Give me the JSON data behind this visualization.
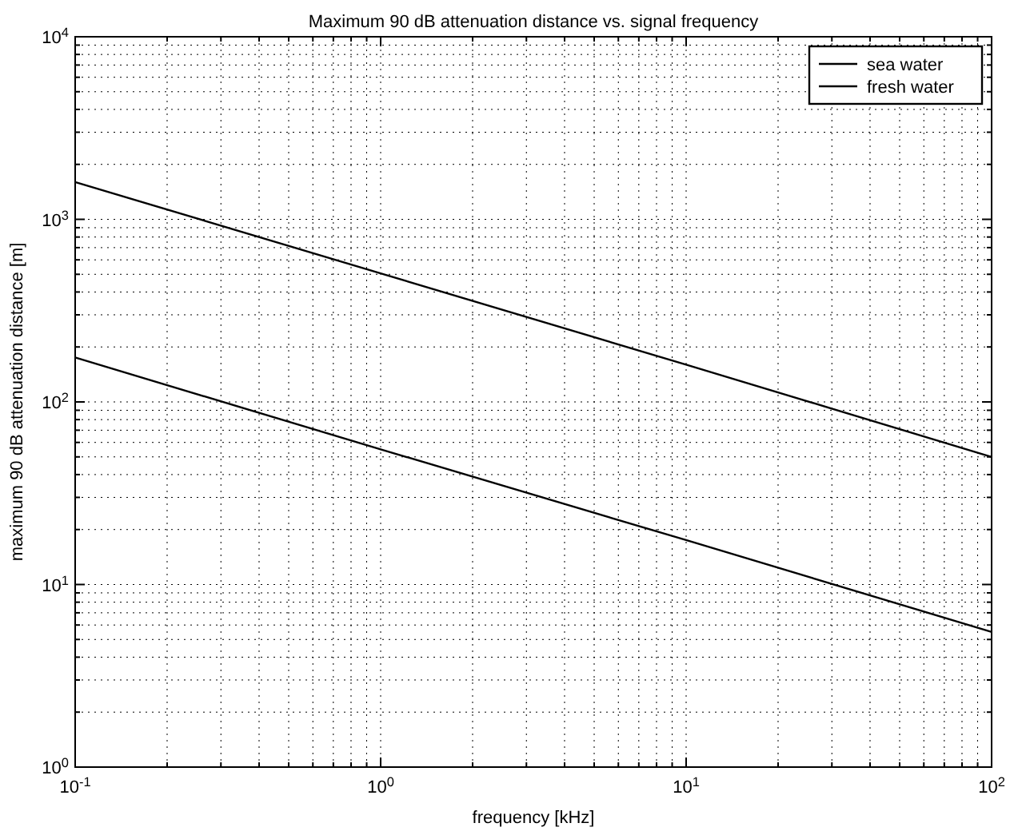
{
  "chart_data": {
    "type": "line",
    "title": "Maximum 90 dB attenuation distance vs. signal frequency",
    "xlabel": "frequency [kHz]",
    "ylabel": "maximum 90 dB attenuation distance [m]",
    "log": "xy",
    "grid": true,
    "legend": "top right",
    "marker": "none",
    "line_style": "solid",
    "xlim": [
      0.1,
      100
    ],
    "ylim": [
      1,
      10000
    ],
    "xticks": [
      {
        "value": 0.1,
        "label": "10$^{-1}$"
      },
      {
        "value": 0.2,
        "label": null
      },
      {
        "value": 0.3,
        "label": null
      },
      {
        "value": 0.4,
        "label": null
      },
      {
        "value": 0.5,
        "label": null
      },
      {
        "value": 0.6,
        "label": null
      },
      {
        "value": 0.7,
        "label": null
      },
      {
        "value": 0.8,
        "label": null
      },
      {
        "value": 0.9,
        "label": null
      },
      {
        "value": 1,
        "label": "10$^{0}$"
      },
      {
        "value": 2,
        "label": null
      },
      {
        "value": 3,
        "label": null
      },
      {
        "value": 4,
        "label": null
      },
      {
        "value": 5,
        "label": null
      },
      {
        "value": 6,
        "label": null
      },
      {
        "value": 7,
        "label": null
      },
      {
        "value": 8,
        "label": null
      },
      {
        "value": 9,
        "label": null
      },
      {
        "value": 10,
        "label": "10$^{1}$"
      },
      {
        "value": 20,
        "label": null
      },
      {
        "value": 30,
        "label": null
      },
      {
        "value": 40,
        "label": null
      },
      {
        "value": 50,
        "label": null
      },
      {
        "value": 60,
        "label": null
      },
      {
        "value": 70,
        "label": null
      },
      {
        "value": 80,
        "label": null
      },
      {
        "value": 90,
        "label": null
      },
      {
        "value": 100,
        "label": "10$^{2}$"
      }
    ],
    "yticks": [
      {
        "value": 1,
        "label": "10$^{0}$"
      },
      {
        "value": 2,
        "label": null
      },
      {
        "value": 3,
        "label": null
      },
      {
        "value": 4,
        "label": null
      },
      {
        "value": 5,
        "label": null
      },
      {
        "value": 6,
        "label": null
      },
      {
        "value": 7,
        "label": null
      },
      {
        "value": 8,
        "label": null
      },
      {
        "value": 9,
        "label": null
      },
      {
        "value": 10,
        "label": "10$^{1}$"
      },
      {
        "value": 20,
        "label": null
      },
      {
        "value": 30,
        "label": null
      },
      {
        "value": 40,
        "label": null
      },
      {
        "value": 50,
        "label": null
      },
      {
        "value": 60,
        "label": null
      },
      {
        "value": 70,
        "label": null
      },
      {
        "value": 80,
        "label": null
      },
      {
        "value": 90,
        "label": null
      },
      {
        "value": 100,
        "label": "10$^{2}$"
      },
      {
        "value": 200,
        "label": null
      },
      {
        "value": 300,
        "label": null
      },
      {
        "value": 400,
        "label": null
      },
      {
        "value": 500,
        "label": null
      },
      {
        "value": 600,
        "label": null
      },
      {
        "value": 700,
        "label": null
      },
      {
        "value": 800,
        "label": null
      },
      {
        "value": 900,
        "label": null
      },
      {
        "value": 1000,
        "label": "10$^{3}$"
      },
      {
        "value": 2000,
        "label": null
      },
      {
        "value": 3000,
        "label": null
      },
      {
        "value": 4000,
        "label": null
      },
      {
        "value": 5000,
        "label": null
      },
      {
        "value": 6000,
        "label": null
      },
      {
        "value": 7000,
        "label": null
      },
      {
        "value": 8000,
        "label": null
      },
      {
        "value": 9000,
        "label": null
      },
      {
        "value": 10000,
        "label": "10$^{4}$"
      }
    ],
    "x": [
      0.1,
      1,
      10,
      100
    ],
    "series": [
      {
        "name": "sea water",
        "color": "#000000",
        "values": [
          175,
          55,
          17.5,
          5.5
        ]
      },
      {
        "name": "fresh water",
        "color": "#000000",
        "values": [
          1600,
          506,
          160,
          50
        ]
      }
    ]
  }
}
